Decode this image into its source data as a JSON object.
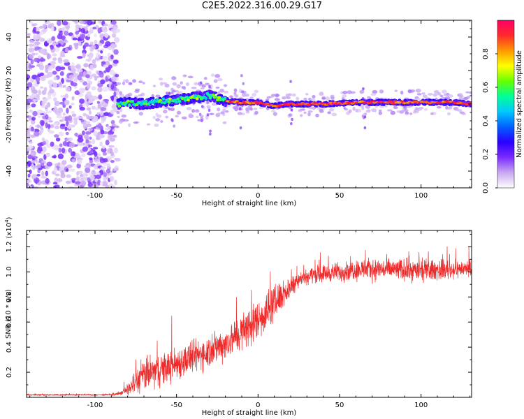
{
  "title": "C2E5.2022.316.00.29.G17",
  "colors": {
    "snr_line": "#ee2a2a",
    "axis": "#000000",
    "colormap": [
      "#ffffff",
      "#c9a8f0",
      "#7a2cff",
      "#2a00ff",
      "#0060ff",
      "#00c8ff",
      "#00ff99",
      "#66ff00",
      "#ffff00",
      "#ff9900",
      "#ff2a2a",
      "#ff0066"
    ]
  },
  "chart_data": [
    {
      "type": "heatmap",
      "name": "spectrogram",
      "xlabel": "Height of straight line (km)",
      "ylabel": "Frequency (Hz)",
      "xlim": [
        -142,
        131
      ],
      "ylim": [
        -50,
        50
      ],
      "xticks": [
        -100,
        -50,
        0,
        50,
        100
      ],
      "xtick_labels": [
        "-100",
        "-50",
        "0",
        "50",
        "100"
      ],
      "yticks": [
        -40,
        -20,
        0,
        20,
        40
      ],
      "ytick_labels": [
        "-40",
        "-20",
        "0",
        "20",
        "40"
      ],
      "colorbar": {
        "label": "Normalized spectral amplitude",
        "range": [
          0,
          1
        ],
        "ticks": [
          0.0,
          0.2,
          0.4,
          0.6,
          0.8
        ],
        "tick_labels": [
          "0.0",
          "0.2",
          "0.4",
          "0.6",
          "0.8"
        ]
      },
      "regions": [
        {
          "x": [
            -142,
            -86
          ],
          "freq_spread": 50,
          "amplitude": 0.08,
          "description": "noise"
        },
        {
          "x": [
            -86,
            -20
          ],
          "freq_center": 2,
          "freq_spread": 6,
          "amplitude": 0.35
        },
        {
          "x": [
            -20,
            131
          ],
          "freq_center": 0.5,
          "freq_spread": 3,
          "amplitude": 0.85
        }
      ],
      "ridge": [
        {
          "x": -85,
          "f": 1
        },
        {
          "x": -70,
          "f": 0
        },
        {
          "x": -55,
          "f": 2
        },
        {
          "x": -45,
          "f": 3
        },
        {
          "x": -30,
          "f": 5
        },
        {
          "x": -20,
          "f": 2
        },
        {
          "x": -10,
          "f": 1
        },
        {
          "x": 0,
          "f": 1
        },
        {
          "x": 10,
          "f": -1
        },
        {
          "x": 20,
          "f": 0
        },
        {
          "x": 40,
          "f": 0
        },
        {
          "x": 60,
          "f": 1
        },
        {
          "x": 80,
          "f": 1
        },
        {
          "x": 100,
          "f": 1
        },
        {
          "x": 120,
          "f": 1
        },
        {
          "x": 131,
          "f": 0
        }
      ]
    },
    {
      "type": "line",
      "name": "snr",
      "xlabel": "Height of straight line (km)",
      "ylabel": "SNR (10 * v/v)",
      "multiplier_label": "(x10",
      "multiplier_exp": "4",
      "multiplier_close": ")",
      "xlim": [
        -142,
        131
      ],
      "ylim": [
        0,
        1.33
      ],
      "xticks": [
        -100,
        -50,
        0,
        50,
        100
      ],
      "xtick_labels": [
        "-100",
        "-50",
        "0",
        "50",
        "100"
      ],
      "yticks": [
        0.2,
        0.4,
        0.6,
        0.8,
        1.0,
        1.2
      ],
      "ytick_labels": [
        "0.2",
        "0.4",
        "0.6",
        "0.8",
        "1.0",
        "1.2"
      ],
      "series": [
        {
          "x": [
            -142,
            -120,
            -100,
            -90,
            -85,
            -80,
            -75,
            -70,
            -60,
            -50,
            -40,
            -30,
            -20,
            -10,
            0,
            10,
            20,
            25,
            35,
            50,
            60,
            80,
            100,
            120,
            131
          ],
          "y": [
            0.02,
            0.02,
            0.02,
            0.02,
            0.03,
            0.06,
            0.12,
            0.18,
            0.22,
            0.27,
            0.32,
            0.37,
            0.43,
            0.52,
            0.62,
            0.75,
            0.88,
            0.95,
            0.98,
            1.0,
            1.02,
            1.02,
            1.01,
            1.02,
            1.03
          ],
          "spread": [
            0.005,
            0.005,
            0.005,
            0.006,
            0.01,
            0.04,
            0.09,
            0.12,
            0.12,
            0.12,
            0.12,
            0.12,
            0.12,
            0.14,
            0.15,
            0.13,
            0.08,
            0.06,
            0.06,
            0.07,
            0.08,
            0.08,
            0.08,
            0.07,
            0.05
          ]
        }
      ]
    }
  ]
}
